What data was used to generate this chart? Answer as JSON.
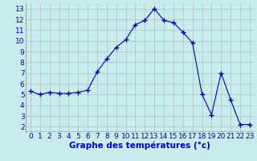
{
  "x": [
    0,
    1,
    2,
    3,
    4,
    5,
    6,
    7,
    8,
    9,
    10,
    11,
    12,
    13,
    14,
    15,
    16,
    17,
    18,
    19,
    20,
    21,
    22,
    23
  ],
  "y": [
    5.3,
    5.0,
    5.2,
    5.1,
    5.1,
    5.2,
    5.4,
    7.1,
    8.3,
    9.4,
    10.1,
    11.5,
    11.9,
    13.0,
    11.9,
    11.7,
    10.8,
    9.8,
    5.0,
    3.1,
    7.0,
    4.5,
    2.2,
    2.2
  ],
  "line_color": "#0000aa",
  "marker": "+",
  "marker_size": 4,
  "bg_color": "#c8ecec",
  "grid_color": "#b0c8c8",
  "xlabel": "Graphe des températures (°c)",
  "xlabel_color": "#0000cc",
  "xlabel_fontsize": 7.5,
  "tick_color": "#0000cc",
  "tick_fontsize": 6.5,
  "xlim": [
    -0.5,
    23.5
  ],
  "ylim": [
    1.5,
    13.5
  ],
  "yticks": [
    2,
    3,
    4,
    5,
    6,
    7,
    8,
    9,
    10,
    11,
    12,
    13
  ],
  "xticks": [
    0,
    1,
    2,
    3,
    4,
    5,
    6,
    7,
    8,
    9,
    10,
    11,
    12,
    13,
    14,
    15,
    16,
    17,
    18,
    19,
    20,
    21,
    22,
    23
  ]
}
